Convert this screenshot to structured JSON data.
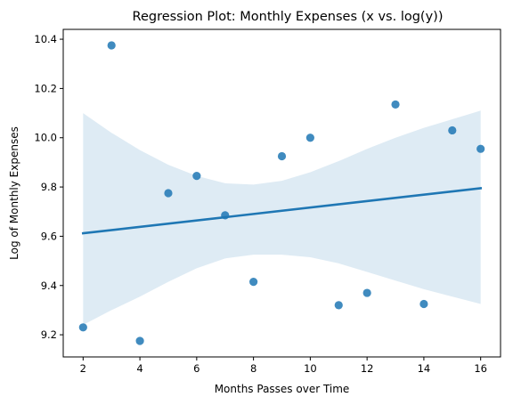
{
  "chart_data": {
    "type": "scatter",
    "title": "Regression Plot: Monthly Expenses (x vs. log(y))",
    "xlabel": "Months Passes over Time",
    "ylabel": "Log of Monthly Expenses",
    "xlim": [
      1.3,
      16.7
    ],
    "ylim": [
      9.11,
      10.44
    ],
    "x_ticks": [
      2,
      4,
      6,
      8,
      10,
      12,
      14,
      16
    ],
    "x_tick_labels": [
      "2",
      "4",
      "6",
      "8",
      "10",
      "12",
      "14",
      "16"
    ],
    "y_ticks": [
      9.2,
      9.4,
      9.6,
      9.8,
      10.0,
      10.2,
      10.4
    ],
    "y_tick_labels": [
      "9.2",
      "9.4",
      "9.6",
      "9.8",
      "10.0",
      "10.2",
      "10.4"
    ],
    "grid": false,
    "color": "#1f77b4",
    "points": [
      {
        "x": 2,
        "y": 9.23
      },
      {
        "x": 3,
        "y": 10.375
      },
      {
        "x": 4,
        "y": 9.175
      },
      {
        "x": 5,
        "y": 9.775
      },
      {
        "x": 6,
        "y": 9.845
      },
      {
        "x": 7,
        "y": 9.685
      },
      {
        "x": 8,
        "y": 9.415
      },
      {
        "x": 9,
        "y": 9.925
      },
      {
        "x": 10,
        "y": 10.0
      },
      {
        "x": 11,
        "y": 9.32
      },
      {
        "x": 12,
        "y": 9.37
      },
      {
        "x": 13,
        "y": 10.135
      },
      {
        "x": 14,
        "y": 9.325
      },
      {
        "x": 15,
        "y": 10.03
      },
      {
        "x": 16,
        "y": 9.955
      }
    ],
    "regression_line": {
      "x": [
        2,
        16
      ],
      "y": [
        9.612,
        9.795
      ]
    },
    "confidence_band": {
      "x": [
        2,
        3,
        4,
        5,
        6,
        7,
        8,
        9,
        10,
        11,
        12,
        13,
        14,
        15,
        16
      ],
      "upper": [
        10.1,
        10.02,
        9.95,
        9.89,
        9.845,
        9.815,
        9.81,
        9.825,
        9.86,
        9.905,
        9.955,
        10.0,
        10.04,
        10.075,
        10.11
      ],
      "lower": [
        9.24,
        9.3,
        9.355,
        9.415,
        9.47,
        9.51,
        9.525,
        9.525,
        9.515,
        9.49,
        9.455,
        9.42,
        9.385,
        9.355,
        9.325
      ]
    }
  }
}
